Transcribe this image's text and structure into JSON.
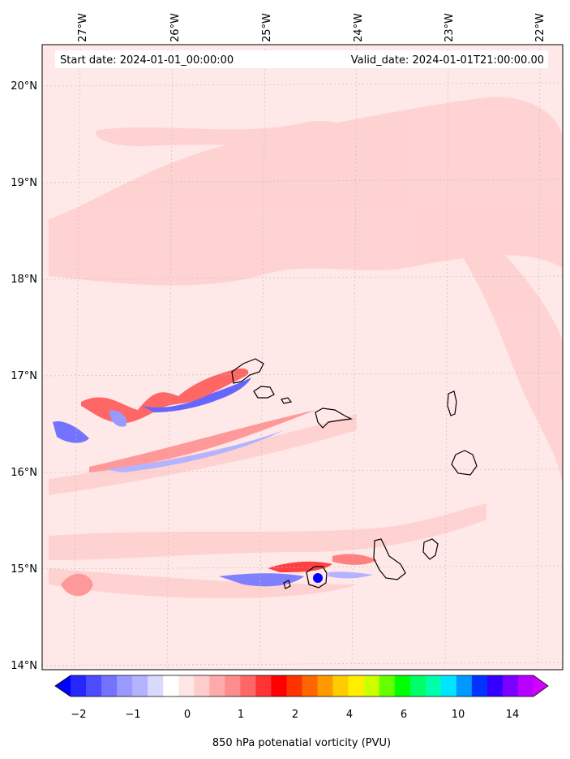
{
  "header": {
    "start_date": "Start date: 2024-01-01_00:00:00",
    "valid_date": "Valid_date: 2024-01-01T21:00:00.00"
  },
  "axes": {
    "lon_labels": [
      "27°W",
      "26°W",
      "25°W",
      "24°W",
      "23°W",
      "22°W"
    ],
    "lat_labels": [
      "20°N",
      "19°N",
      "18°N",
      "17°N",
      "16°N",
      "15°N",
      "14°N"
    ]
  },
  "colorbar": {
    "label": "850 hPa potenatial vorticity (PVU)",
    "tick_labels": [
      "−2",
      "−1",
      "0",
      "1",
      "2",
      "4",
      "6",
      "10",
      "14"
    ],
    "colors": [
      "#0000ff",
      "#2626ff",
      "#4c4cff",
      "#7373ff",
      "#9999ff",
      "#b3b3ff",
      "#d9d9ff",
      "#ffffff",
      "#ffe6e6",
      "#ffcccc",
      "#ffaaaa",
      "#ff8c8c",
      "#ff6666",
      "#ff3333",
      "#ff0000",
      "#ff3300",
      "#ff6600",
      "#ff9900",
      "#ffcc00",
      "#ffee00",
      "#ccff00",
      "#66ff00",
      "#00ff00",
      "#00ff66",
      "#00ffaa",
      "#00e5ff",
      "#0099ff",
      "#0033ff",
      "#3300ff",
      "#7a00ff",
      "#b800ff",
      "#d200ff"
    ]
  },
  "map": {
    "background_color": "#ffe8e8",
    "light_band_color": "#ffd0d0",
    "positive_strong": "#ff4040",
    "negative_color": "#4040ff"
  }
}
